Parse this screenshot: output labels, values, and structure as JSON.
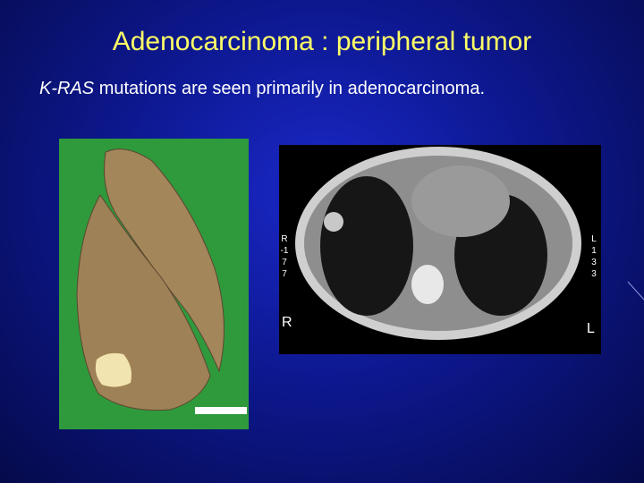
{
  "title": "Adenocarcinoma : peripheral tumor",
  "subtitle": {
    "gene": "K-RAS",
    "text": "mutations are seen primarily in adenocarcinoma."
  },
  "ct_scan": {
    "right_marker": "R",
    "left_marker": "L",
    "side_right": [
      "R",
      "-1",
      "7",
      "7"
    ],
    "side_left": [
      "L",
      "1",
      "3",
      "3"
    ]
  }
}
